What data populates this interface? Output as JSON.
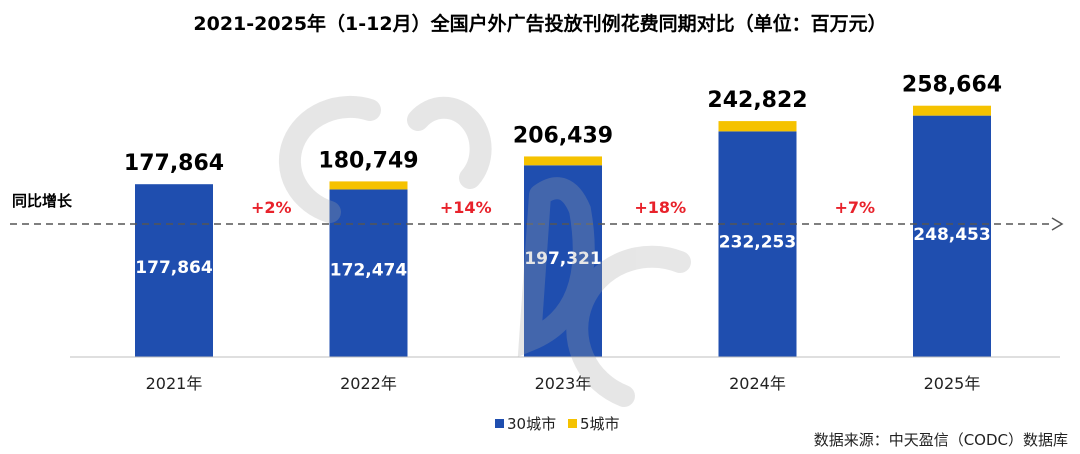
{
  "chart_data": {
    "type": "bar",
    "stacked": true,
    "title": "2021-2025年（1-12月）全国户外广告投放刊例花费同期对比（单位：百万元）",
    "categories": [
      "2021年",
      "2022年",
      "2023年",
      "2024年",
      "2025年"
    ],
    "series": [
      {
        "name": "30城市",
        "color": "#1f4eaf",
        "values": [
          177864,
          172474,
          197321,
          232253,
          248453
        ],
        "labels": [
          "177,864",
          "172,474",
          "197,321",
          "232,253",
          "248,453"
        ]
      },
      {
        "name": "5城市",
        "color": "#f5c200",
        "values": [
          0,
          8275,
          9118,
          10569,
          10211
        ]
      }
    ],
    "totals": [
      177864,
      180749,
      206439,
      242822,
      258664
    ],
    "total_labels": [
      "177,864",
      "180,749",
      "206,439",
      "242,822",
      "258,664"
    ],
    "growth": [
      "+2%",
      "+14%",
      "+18%",
      "+7%"
    ],
    "reference_line": {
      "label": "同比增长"
    },
    "source": "数据来源：中天盈信（CODC）数据库",
    "watermark": "CODC",
    "ylim": [
      0,
      260000
    ],
    "grid": false,
    "legend_position": "bottom-center"
  }
}
